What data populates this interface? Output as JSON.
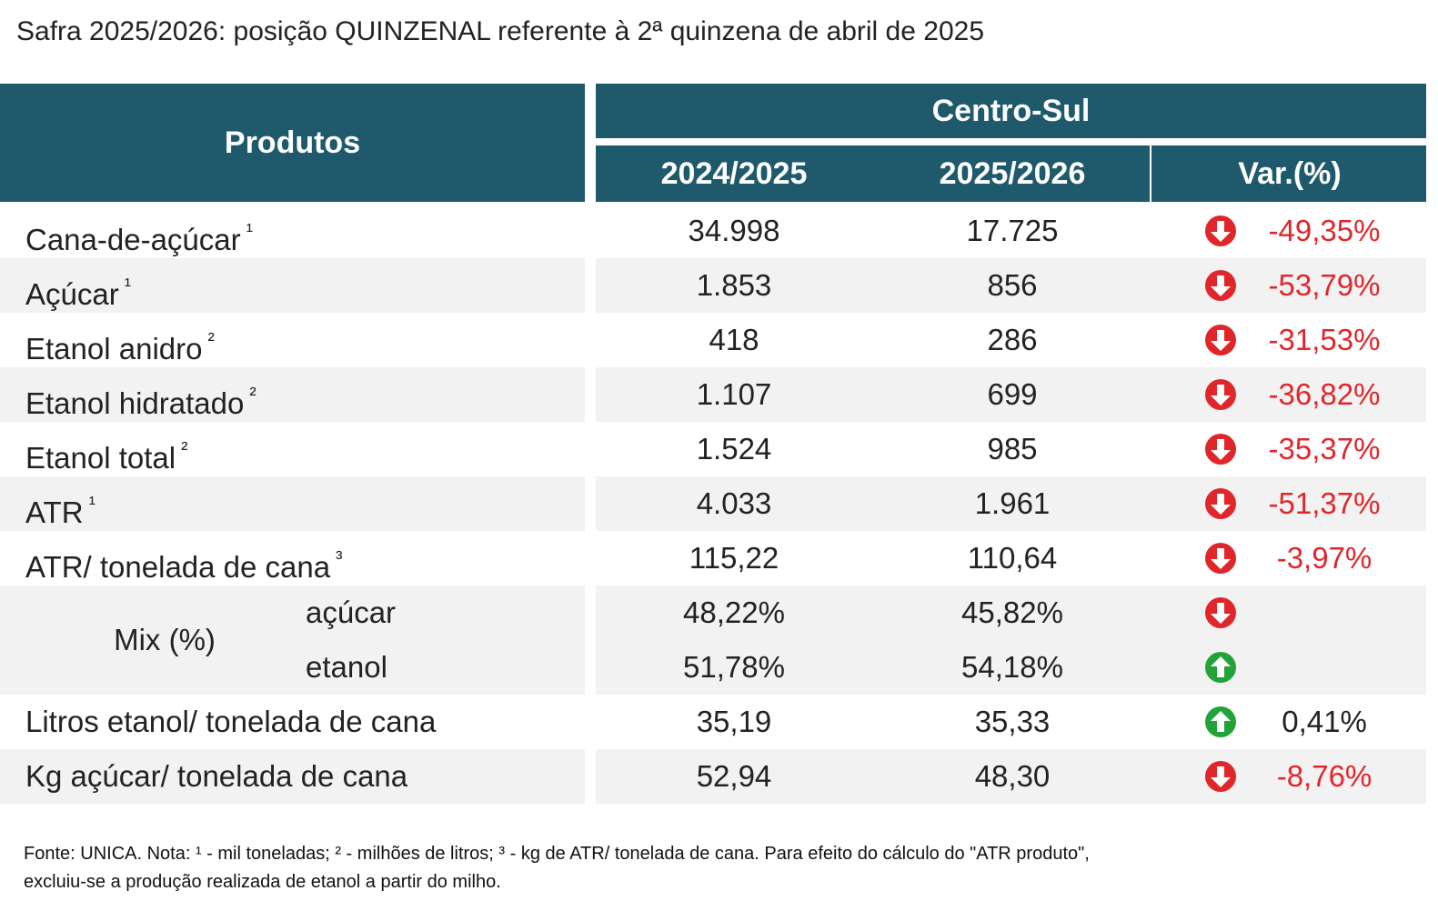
{
  "title": "Safra 2025/2026: posição QUINZENAL referente à 2ª quinzena de abril de 2025",
  "table": {
    "header": {
      "products": "Produtos",
      "region": "Centro-Sul",
      "columns": [
        "2024/2025",
        "2025/2026",
        "Var.(%)"
      ]
    },
    "rows": [
      {
        "label": "Cana-de-açúcar",
        "note": "¹",
        "values": [
          "34.998",
          "17.725"
        ],
        "trend": "down",
        "var": "-49,35%"
      },
      {
        "label": "Açúcar",
        "note": "¹",
        "values": [
          "1.853",
          "856"
        ],
        "trend": "down",
        "var": "-53,79%"
      },
      {
        "label": "Etanol anidro",
        "note": "²",
        "values": [
          "418",
          "286"
        ],
        "trend": "down",
        "var": "-31,53%"
      },
      {
        "label": "Etanol hidratado",
        "note": "²",
        "values": [
          "1.107",
          "699"
        ],
        "trend": "down",
        "var": "-36,82%"
      },
      {
        "label": "Etanol total",
        "note": "²",
        "values": [
          "1.524",
          "985"
        ],
        "trend": "down",
        "var": "-35,37%"
      },
      {
        "label": "ATR",
        "note": "¹",
        "values": [
          "4.033",
          "1.961"
        ],
        "trend": "down",
        "var": "-51,37%"
      },
      {
        "label": "ATR/ tonelada de cana",
        "note": "³",
        "values": [
          "115,22",
          "110,64"
        ],
        "trend": "down",
        "var": "-3,97%"
      },
      {
        "label": "Mix (%)",
        "sub": [
          {
            "label": "açúcar",
            "values": [
              "48,22%",
              "45,82%"
            ],
            "trend": "down"
          },
          {
            "label": "etanol",
            "values": [
              "51,78%",
              "54,18%"
            ],
            "trend": "up"
          }
        ]
      },
      {
        "label": "Litros etanol/ tonelada de cana",
        "values": [
          "35,19",
          "35,33"
        ],
        "trend": "up",
        "var": "0,41%"
      },
      {
        "label": "Kg açúcar/ tonelada de cana",
        "values": [
          "52,94",
          "48,30"
        ],
        "trend": "down",
        "var": "-8,76%"
      }
    ]
  },
  "footnote": [
    "Fonte: UNICA. Nota: ¹ - mil toneladas; ² - milhões de litros; ³ - kg de ATR/ tonelada de cana. Para efeito do cálculo do \"ATR produto\",",
    "excluiu-se a produção realizada de etanol a partir do milho."
  ]
}
